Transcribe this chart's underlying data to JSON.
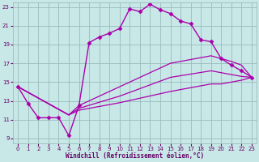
{
  "bg_color": "#c8e8e8",
  "grid_color": "#99bbbb",
  "line_color": "#aa00aa",
  "marker_color": "#aa00aa",
  "xlabel": "Windchill (Refroidissement éolien,°C)",
  "xlabel_color": "#660066",
  "tick_color": "#660066",
  "xlim": [
    -0.5,
    23.5
  ],
  "ylim": [
    8.5,
    23.5
  ],
  "yticks": [
    9,
    11,
    13,
    15,
    17,
    19,
    21,
    23
  ],
  "xticks": [
    0,
    1,
    2,
    3,
    4,
    5,
    6,
    7,
    8,
    9,
    10,
    11,
    12,
    13,
    14,
    15,
    16,
    17,
    18,
    19,
    20,
    21,
    22,
    23
  ],
  "series": [
    {
      "x": [
        0,
        1,
        2,
        3,
        4,
        5,
        6,
        7,
        8,
        9,
        10,
        11,
        12,
        13,
        14,
        15,
        16,
        17,
        18,
        19,
        20,
        21,
        22,
        23
      ],
      "y": [
        14.5,
        12.7,
        11.2,
        11.2,
        11.2,
        9.3,
        12.5,
        19.2,
        19.8,
        20.2,
        20.7,
        22.8,
        22.5,
        23.3,
        22.7,
        22.3,
        21.5,
        21.2,
        19.5,
        19.3,
        17.5,
        16.8,
        16.2,
        15.5
      ],
      "marker": "D",
      "marker_size": 2.5,
      "linewidth": 1.0
    },
    {
      "x": [
        0,
        5,
        6,
        10,
        15,
        19,
        20,
        21,
        22,
        23
      ],
      "y": [
        14.5,
        11.5,
        12.5,
        14.5,
        17.0,
        17.8,
        17.5,
        17.2,
        16.8,
        15.5
      ],
      "marker": null,
      "linewidth": 0.9
    },
    {
      "x": [
        0,
        5,
        6,
        10,
        15,
        19,
        20,
        21,
        22,
        23
      ],
      "y": [
        14.5,
        11.5,
        12.2,
        13.5,
        15.5,
        16.2,
        16.0,
        15.8,
        15.6,
        15.5
      ],
      "marker": null,
      "linewidth": 0.9
    },
    {
      "x": [
        0,
        5,
        6,
        10,
        15,
        19,
        20,
        21,
        22,
        23
      ],
      "y": [
        14.5,
        11.5,
        12.0,
        12.8,
        14.0,
        14.8,
        14.8,
        15.0,
        15.2,
        15.5
      ],
      "marker": null,
      "linewidth": 0.9
    }
  ]
}
